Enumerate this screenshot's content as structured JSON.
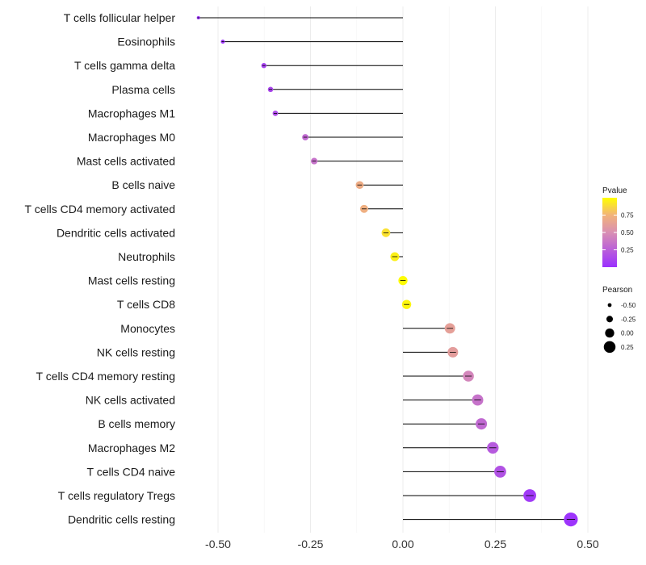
{
  "chart_data": {
    "type": "lollipop",
    "title": "",
    "xlabel": "",
    "ylabel": "",
    "xlim": [
      -0.6,
      0.6
    ],
    "x_ticks": [
      -0.5,
      -0.25,
      0,
      0.25,
      0.5
    ],
    "x_tick_labels": [
      "-0.50",
      "-0.25",
      "0.00",
      "0.25",
      "0.50"
    ],
    "categories": [
      "T cells follicular helper",
      "Eosinophils",
      "T cells gamma delta",
      "Plasma cells",
      "Macrophages M1",
      "Macrophages M0",
      "Mast cells activated",
      "B cells naive",
      "T cells CD4 memory activated",
      "Dendritic cells activated",
      "Neutrophils",
      "Mast cells resting",
      "T cells CD8",
      "Monocytes",
      "NK cells resting",
      "T cells CD4 memory resting",
      "NK cells activated",
      "B cells memory",
      "Macrophages M2",
      "T cells CD4 naive",
      "T cells regulatory  Tregs ",
      "Dendritic cells resting"
    ],
    "pearson": [
      -0.553,
      -0.487,
      -0.376,
      -0.358,
      -0.345,
      -0.264,
      -0.24,
      -0.117,
      -0.105,
      -0.046,
      -0.022,
      0.0,
      0.01,
      0.127,
      0.135,
      0.177,
      0.202,
      0.212,
      0.243,
      0.263,
      0.343,
      0.454
    ],
    "pvalue": [
      0.01,
      0.02,
      0.1,
      0.12,
      0.15,
      0.3,
      0.35,
      0.7,
      0.72,
      0.9,
      0.95,
      0.99,
      0.97,
      0.62,
      0.6,
      0.45,
      0.35,
      0.3,
      0.22,
      0.18,
      0.05,
      0.02
    ],
    "legend_pvalue": {
      "title": "Pvalue",
      "ticks": [
        0.75,
        0.5,
        0.25
      ],
      "tick_labels": [
        "0.75",
        "0.50",
        "0.25"
      ],
      "range": [
        0,
        1
      ],
      "colors": [
        "#9B30FF",
        "#FFFF00"
      ]
    },
    "legend_pearson": {
      "title": "Pearson",
      "values": [
        -0.5,
        -0.25,
        0,
        0.25
      ],
      "labels": [
        "-0.50",
        "-0.25",
        "0.00",
        "0.25"
      ]
    }
  }
}
